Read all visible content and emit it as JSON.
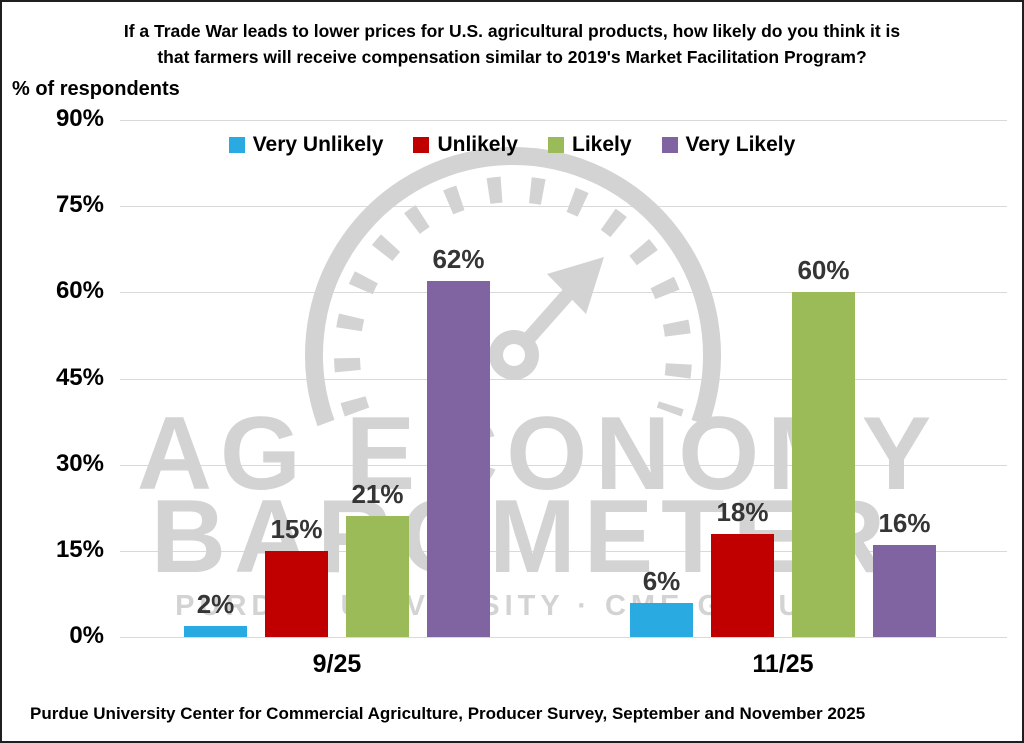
{
  "title": "If a Trade War leads to lower prices for U.S. agricultural products, how likely do you think it is\nthat farmers will receive compensation similar to 2019's Market Facilitation Program?",
  "y_axis_note": "% of respondents",
  "footer": "Purdue University Center for Commercial Agriculture, Producer Survey, September and November 2025",
  "watermark": {
    "line1": "AG ECONOMY",
    "line2": "BAROMETER",
    "line3": "PURDUE UNIVERSITY · CME GROUP",
    "color": "#D3D3D3"
  },
  "chart_data": {
    "type": "bar",
    "title": "If a Trade War leads to lower prices for U.S. agricultural products, how likely do you think it is that farmers will receive compensation similar to 2019's Market Facilitation Program?",
    "xlabel": "",
    "ylabel": "% of respondents",
    "categories": [
      "9/25",
      "11/25"
    ],
    "series": [
      {
        "name": "Very Unlikely",
        "color": "#29ABE2",
        "values": [
          2,
          6
        ]
      },
      {
        "name": "Unlikely",
        "color": "#C00000",
        "values": [
          15,
          18
        ]
      },
      {
        "name": "Likely",
        "color": "#9BBB59",
        "values": [
          21,
          60
        ]
      },
      {
        "name": "Very Likely",
        "color": "#8064A2",
        "values": [
          62,
          16
        ]
      }
    ],
    "value_label_format": "{v}%",
    "ylim": [
      0,
      90
    ],
    "yticks": [
      90,
      75,
      60,
      45,
      30,
      15,
      0
    ],
    "ytick_format": "{v}%",
    "grid": true,
    "gridline_color": "#D9D9D9",
    "value_label_color": "#353535",
    "legend_position": "top"
  }
}
